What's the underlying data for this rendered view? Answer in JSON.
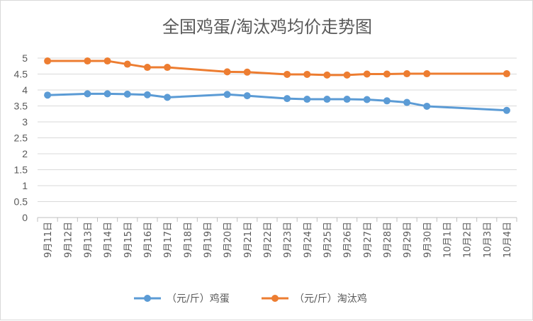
{
  "chart_data": {
    "type": "line",
    "title": "全国鸡蛋/淘汰鸡均价走势图",
    "categories": [
      "9月11日",
      "9月12日",
      "9月13日",
      "9月14日",
      "9月15日",
      "9月16日",
      "9月17日",
      "9月18日",
      "9月19日",
      "9月20日",
      "9月21日",
      "9月22日",
      "9月23日",
      "9月24日",
      "9月25日",
      "9月26日",
      "9月27日",
      "9月28日",
      "9月29日",
      "9月30日",
      "10月1日",
      "10月2日",
      "10月3日",
      "10月4日"
    ],
    "y_ticks": [
      "0",
      "0.5",
      "1",
      "1.5",
      "2",
      "2.5",
      "3",
      "3.5",
      "4",
      "4.5",
      "5"
    ],
    "ylim": [
      0,
      5
    ],
    "grid": true,
    "legend_position": "bottom",
    "series": [
      {
        "name": "（元/斤）鸡蛋",
        "color": "#5B9BD5",
        "values": [
          3.84,
          null,
          3.88,
          3.88,
          3.87,
          3.85,
          3.77,
          null,
          null,
          3.86,
          3.82,
          null,
          3.73,
          3.71,
          3.71,
          3.71,
          3.7,
          3.66,
          3.61,
          3.49,
          null,
          null,
          null,
          3.36
        ]
      },
      {
        "name": "（元/斤）淘汰鸡",
        "color": "#ED7D31",
        "values": [
          4.91,
          null,
          4.91,
          4.91,
          4.81,
          4.71,
          4.71,
          null,
          null,
          4.57,
          4.56,
          null,
          4.49,
          4.49,
          4.47,
          4.47,
          4.5,
          4.5,
          4.51,
          4.51,
          null,
          null,
          null,
          4.51
        ]
      }
    ]
  }
}
